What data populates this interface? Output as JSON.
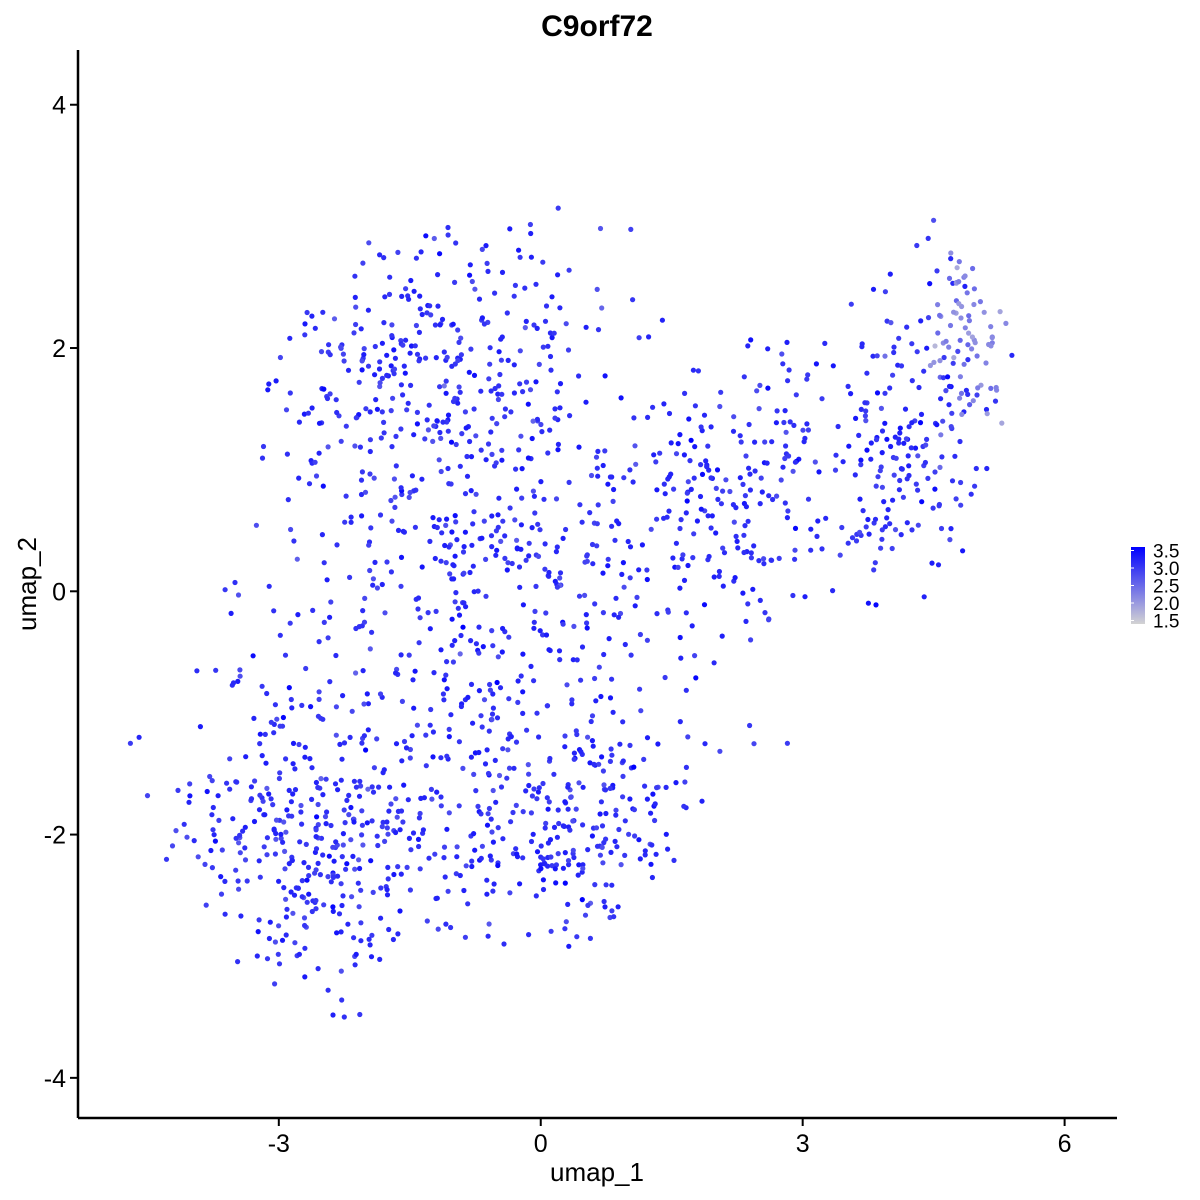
{
  "chart_data": {
    "type": "scatter",
    "title": "C9orf72",
    "xlabel": "umap_1",
    "ylabel": "umap_2",
    "xlim": [
      -5.3,
      6.6
    ],
    "ylim": [
      -4.33,
      4.45
    ],
    "x_ticks": [
      -3,
      0,
      3,
      6
    ],
    "y_ticks": [
      -4,
      -2,
      0,
      2,
      4
    ],
    "x_tick_labels": [
      "-3",
      "0",
      "3",
      "6"
    ],
    "y_tick_labels": [
      "-4",
      "-2",
      "0",
      "2",
      "4"
    ],
    "grid": false,
    "legend": {
      "placement": "right",
      "type": "colorbar",
      "range": [
        1.4,
        3.6
      ],
      "labels": [
        "3.5",
        "3.0",
        "2.5",
        "2.0",
        "1.5"
      ],
      "label_values": [
        3.5,
        3.0,
        2.5,
        2.0,
        1.5
      ],
      "low_color": "#d3d3d3",
      "high_color": "#0000ff"
    },
    "color_scale": {
      "low": "#d3d3d3",
      "high": "#0000ff",
      "min": 1.4,
      "max": 3.6
    },
    "point_count": 1900,
    "clusters": [
      {
        "name": "",
        "center": [
          -1.3,
          1.9
        ],
        "spread": [
          1.25,
          0.75
        ],
        "count": 300,
        "mean_value": 3.1
      },
      {
        "name": "",
        "center": [
          -0.8,
          0.2
        ],
        "spread": [
          1.6,
          1.1
        ],
        "count": 420,
        "mean_value": 3.1
      },
      {
        "name": "",
        "center": [
          -2.6,
          -2.0
        ],
        "spread": [
          1.0,
          0.8
        ],
        "count": 380,
        "mean_value": 3.1
      },
      {
        "name": "",
        "center": [
          0.3,
          -1.9
        ],
        "spread": [
          1.1,
          0.7
        ],
        "count": 300,
        "mean_value": 3.1
      },
      {
        "name": "",
        "center": [
          2.2,
          0.8
        ],
        "spread": [
          1.2,
          0.8
        ],
        "count": 250,
        "mean_value": 3.1
      },
      {
        "name": "",
        "center": [
          4.2,
          1.2
        ],
        "spread": [
          0.8,
          0.8
        ],
        "count": 180,
        "mean_value": 3.1
      },
      {
        "name": "",
        "center": [
          4.9,
          2.1
        ],
        "spread": [
          0.35,
          0.45
        ],
        "count": 70,
        "mean_value": 2.2
      }
    ],
    "points_sample": [
      {
        "x": -4.7,
        "y": -1.25,
        "value": 3.0
      },
      {
        "x": -4.6,
        "y": -1.2,
        "value": 3.2
      },
      {
        "x": -0.5,
        "y": -0.75,
        "value": 3.6
      },
      {
        "x": 0.2,
        "y": 3.15,
        "value": 3.0
      },
      {
        "x": 4.5,
        "y": 3.05,
        "value": 2.8
      },
      {
        "x": -2.25,
        "y": -3.5,
        "value": 3.1
      }
    ]
  }
}
